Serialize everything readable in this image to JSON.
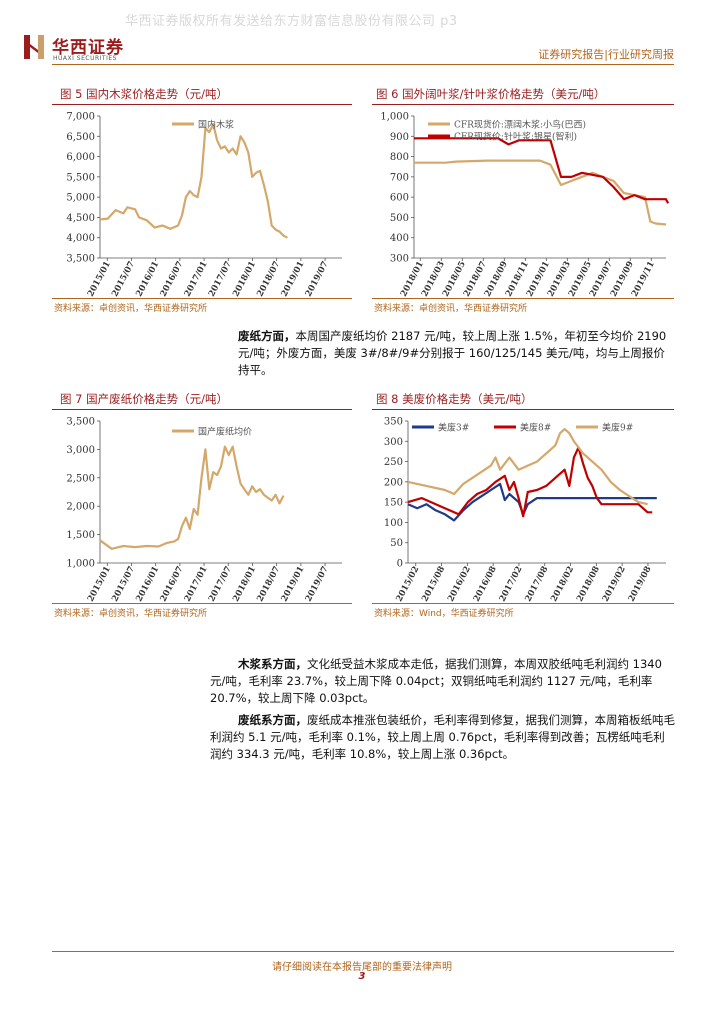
{
  "header": {
    "watermark": "华西证券版权所有发送给东方财富信息股份有限公司 p3",
    "logo_cn": "华西证券",
    "logo_en": "HUAXI SECURITIES",
    "right": "证券研究报告|行业研究周报"
  },
  "colors": {
    "gold": "#d4a86a",
    "red": "#c00000",
    "navy": "#1f3a8a",
    "brand": "#9b1c1c",
    "accent": "#b0651c"
  },
  "figures": {
    "fig5": {
      "title": "图 5   国内木浆价格走势（元/吨）",
      "source": "资料来源：卓创资讯，华西证券研究所"
    },
    "fig6": {
      "title": "图 6   国外阔叶浆/针叶浆价格走势（美元/吨）",
      "source": "资料来源：卓创资讯，华西证券研究所"
    },
    "fig7": {
      "title": "图 7   国产废纸价格走势（元/吨）",
      "source": "资料来源：卓创资讯，华西证券研究所"
    },
    "fig8": {
      "title": "图 8   美废价格走势（美元/吨）",
      "source": "资料来源：Wind，华西证券研究所"
    }
  },
  "paragraphs": {
    "p1_head": "废纸方面，",
    "p1_body": "本周国产废纸均价 2187 元/吨，较上周上涨 1.5%，年初至今均价 2190 元/吨；外废方面，美废 3#/8#/9#分别报于 160/125/145 美元/吨，均与上周报价持平。",
    "p2_head": "木浆系方面，",
    "p2_body": "文化纸受益木浆成本走低，据我们测算，本周双胶纸吨毛利润约 1340 元/吨，毛利率 23.7%，较上周下降 0.04pct；双铜纸吨毛利润约 1127 元/吨，毛利率 20.7%，较上周下降 0.03pct。",
    "p3_head": "废纸系方面，",
    "p3_body": "废纸成本推涨包装纸价，毛利率得到修复，据我们测算，本周箱板纸吨毛利润约 5.1 元/吨，毛利率 0.1%，较上周上周 0.76pct，毛利率得到改善；瓦楞纸吨毛利润约 334.3 元/吨，毛利率 10.8%，较上周上涨 0.36pct。"
  },
  "footer": {
    "notice": "请仔细阅读在本报告尾部的重要法律声明",
    "page": "3"
  },
  "chart_data": [
    {
      "id": "fig5",
      "type": "line",
      "ylim": [
        3500,
        7000
      ],
      "yticks": [
        "3,500",
        "4,000",
        "4,500",
        "5,000",
        "5,500",
        "6,000",
        "6,500",
        "7,000"
      ],
      "xticks": [
        "2015/01",
        "2015/07",
        "2016/01",
        "2016/07",
        "2017/01",
        "2017/07",
        "2018/01",
        "2018/07",
        "2019/01",
        "2019/07"
      ],
      "xrange": [
        0,
        62
      ],
      "series": [
        {
          "name": "国内木浆",
          "color": "#d4a86a",
          "points": [
            [
              0,
              4450
            ],
            [
              2,
              4470
            ],
            [
              4,
              4680
            ],
            [
              6,
              4600
            ],
            [
              7,
              4750
            ],
            [
              9,
              4700
            ],
            [
              10,
              4500
            ],
            [
              12,
              4430
            ],
            [
              14,
              4250
            ],
            [
              16,
              4300
            ],
            [
              18,
              4220
            ],
            [
              20,
              4300
            ],
            [
              21,
              4550
            ],
            [
              22,
              5000
            ],
            [
              23,
              5150
            ],
            [
              24,
              5050
            ],
            [
              25,
              5000
            ],
            [
              26,
              5500
            ],
            [
              27,
              6700
            ],
            [
              28,
              6600
            ],
            [
              29,
              6800
            ],
            [
              30,
              6400
            ],
            [
              31,
              6200
            ],
            [
              32,
              6250
            ],
            [
              33,
              6100
            ],
            [
              34,
              6200
            ],
            [
              35,
              6050
            ],
            [
              36,
              6500
            ],
            [
              37,
              6350
            ],
            [
              38,
              6100
            ],
            [
              39,
              5500
            ],
            [
              40,
              5600
            ],
            [
              41,
              5650
            ],
            [
              42,
              5300
            ],
            [
              43,
              4900
            ],
            [
              44,
              4300
            ],
            [
              45,
              4200
            ],
            [
              46,
              4150
            ],
            [
              47,
              4050
            ],
            [
              48,
              4000
            ]
          ]
        }
      ]
    },
    {
      "id": "fig6",
      "type": "line",
      "ylim": [
        300,
        1000
      ],
      "yticks": [
        "300",
        "400",
        "500",
        "600",
        "700",
        "800",
        "900",
        "1,000"
      ],
      "xticks": [
        "2018/01",
        "2018/03",
        "2018/05",
        "2018/07",
        "2018/09",
        "2018/11",
        "2019/01",
        "2019/03",
        "2019/05",
        "2019/07",
        "2019/09",
        "2019/11"
      ],
      "xrange": [
        0,
        24
      ],
      "series": [
        {
          "name": "CFR现货价:漂阔木浆:小鸟(巴西)",
          "color": "#d4a86a",
          "points": [
            [
              0,
              770
            ],
            [
              3,
              770
            ],
            [
              4,
              775
            ],
            [
              7,
              780
            ],
            [
              12,
              780
            ],
            [
              13,
              760
            ],
            [
              14,
              660
            ],
            [
              15,
              680
            ],
            [
              17,
              720
            ],
            [
              18,
              700
            ],
            [
              19,
              680
            ],
            [
              20,
              620
            ],
            [
              21,
              610
            ],
            [
              22,
              600
            ],
            [
              22.5,
              480
            ],
            [
              23,
              470
            ],
            [
              24,
              465
            ]
          ]
        },
        {
          "name": "CFR现货价:针叶浆:银星(智利)",
          "color": "#c00000",
          "points": [
            [
              0,
              890
            ],
            [
              8,
              890
            ],
            [
              9,
              860
            ],
            [
              10,
              880
            ],
            [
              13,
              880
            ],
            [
              14,
              700
            ],
            [
              15,
              700
            ],
            [
              16,
              720
            ],
            [
              18,
              700
            ],
            [
              19,
              650
            ],
            [
              20,
              590
            ],
            [
              21,
              610
            ],
            [
              22,
              590
            ],
            [
              24,
              590
            ],
            [
              24.2,
              570
            ]
          ]
        }
      ]
    },
    {
      "id": "fig7",
      "type": "line",
      "ylim": [
        1000,
        3500
      ],
      "yticks": [
        "1,000",
        "1,500",
        "2,000",
        "2,500",
        "3,000",
        "3,500"
      ],
      "xticks": [
        "2015/01",
        "2015/07",
        "2016/01",
        "2016/07",
        "2017/01",
        "2017/07",
        "2018/01",
        "2018/07",
        "2019/01",
        "2019/07"
      ],
      "xrange": [
        0,
        62
      ],
      "series": [
        {
          "name": "国产废纸均价",
          "color": "#d4a86a",
          "points": [
            [
              0,
              1400
            ],
            [
              3,
              1250
            ],
            [
              6,
              1300
            ],
            [
              9,
              1280
            ],
            [
              12,
              1300
            ],
            [
              15,
              1290
            ],
            [
              17,
              1350
            ],
            [
              19,
              1380
            ],
            [
              20,
              1420
            ],
            [
              21,
              1650
            ],
            [
              22,
              1800
            ],
            [
              23,
              1600
            ],
            [
              24,
              1950
            ],
            [
              25,
              1850
            ],
            [
              26,
              2500
            ],
            [
              27,
              3000
            ],
            [
              28,
              2300
            ],
            [
              29,
              2600
            ],
            [
              30,
              2550
            ],
            [
              31,
              2700
            ],
            [
              32,
              3050
            ],
            [
              33,
              2900
            ],
            [
              34,
              3050
            ],
            [
              35,
              2700
            ],
            [
              36,
              2400
            ],
            [
              37,
              2300
            ],
            [
              38,
              2200
            ],
            [
              39,
              2350
            ],
            [
              40,
              2250
            ],
            [
              41,
              2300
            ],
            [
              42,
              2200
            ],
            [
              43,
              2150
            ],
            [
              44,
              2100
            ],
            [
              45,
              2200
            ],
            [
              46,
              2050
            ],
            [
              47,
              2187
            ]
          ]
        }
      ]
    },
    {
      "id": "fig8",
      "type": "line",
      "ylim": [
        0,
        350
      ],
      "yticks": [
        "0",
        "50",
        "100",
        "150",
        "200",
        "250",
        "300",
        "350"
      ],
      "xticks": [
        "2015/02",
        "2015/08",
        "2016/02",
        "2016/08",
        "2017/02",
        "2017/08",
        "2018/02",
        "2018/08",
        "2019/02",
        "2019/08"
      ],
      "xrange": [
        0,
        56
      ],
      "series": [
        {
          "name": "美废3#",
          "color": "#1f3a8a",
          "points": [
            [
              0,
              145
            ],
            [
              2,
              135
            ],
            [
              4,
              145
            ],
            [
              6,
              130
            ],
            [
              8,
              120
            ],
            [
              10,
              105
            ],
            [
              12,
              130
            ],
            [
              14,
              150
            ],
            [
              16,
              165
            ],
            [
              18,
              180
            ],
            [
              20,
              195
            ],
            [
              21,
              155
            ],
            [
              22,
              170
            ],
            [
              24,
              150
            ],
            [
              25,
              120
            ],
            [
              26,
              145
            ],
            [
              28,
              160
            ],
            [
              30,
              160
            ],
            [
              34,
              160
            ],
            [
              40,
              160
            ],
            [
              46,
              160
            ],
            [
              54,
              160
            ]
          ]
        },
        {
          "name": "美废8#",
          "color": "#c00000",
          "points": [
            [
              0,
              150
            ],
            [
              3,
              160
            ],
            [
              5,
              150
            ],
            [
              7,
              140
            ],
            [
              9,
              130
            ],
            [
              11,
              120
            ],
            [
              13,
              150
            ],
            [
              15,
              170
            ],
            [
              17,
              180
            ],
            [
              19,
              200
            ],
            [
              21,
              215
            ],
            [
              22,
              180
            ],
            [
              23,
              200
            ],
            [
              24,
              160
            ],
            [
              25,
              115
            ],
            [
              26,
              175
            ],
            [
              28,
              180
            ],
            [
              30,
              190
            ],
            [
              32,
              210
            ],
            [
              34,
              230
            ],
            [
              35,
              190
            ],
            [
              36,
              260
            ],
            [
              37,
              285
            ],
            [
              38,
              245
            ],
            [
              39,
              210
            ],
            [
              40,
              190
            ],
            [
              41,
              160
            ],
            [
              42,
              145
            ],
            [
              50,
              145
            ],
            [
              52,
              125
            ],
            [
              53,
              125
            ]
          ]
        },
        {
          "name": "美废9#",
          "color": "#d4a86a",
          "points": [
            [
              0,
              200
            ],
            [
              4,
              190
            ],
            [
              8,
              180
            ],
            [
              10,
              170
            ],
            [
              12,
              195
            ],
            [
              14,
              210
            ],
            [
              16,
              225
            ],
            [
              18,
              240
            ],
            [
              19,
              260
            ],
            [
              20,
              230
            ],
            [
              22,
              260
            ],
            [
              24,
              230
            ],
            [
              26,
              240
            ],
            [
              28,
              250
            ],
            [
              30,
              270
            ],
            [
              32,
              290
            ],
            [
              33,
              320
            ],
            [
              34,
              330
            ],
            [
              35,
              320
            ],
            [
              36,
              300
            ],
            [
              38,
              270
            ],
            [
              40,
              250
            ],
            [
              42,
              230
            ],
            [
              44,
              200
            ],
            [
              46,
              180
            ],
            [
              48,
              165
            ],
            [
              50,
              150
            ],
            [
              52,
              145
            ]
          ]
        }
      ]
    }
  ]
}
